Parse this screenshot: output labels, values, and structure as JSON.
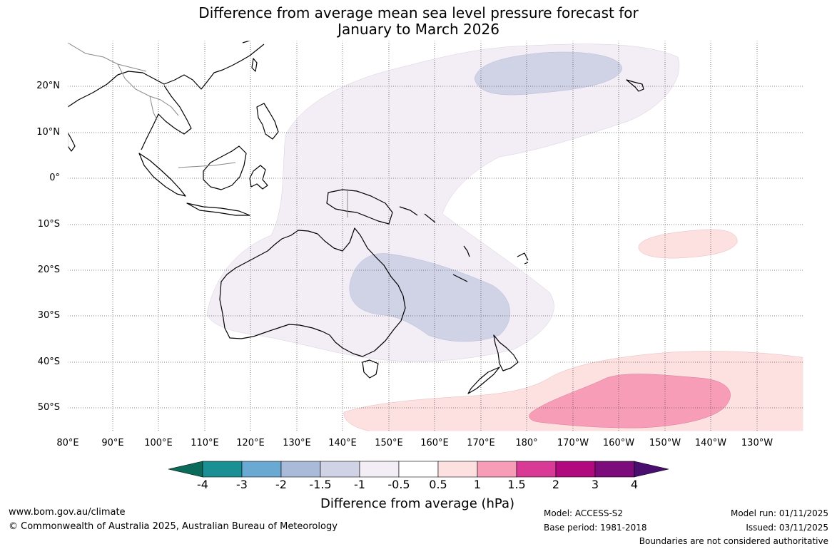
{
  "title": {
    "line1": "Difference from average mean sea level pressure forecast for",
    "line2": "January to March 2026"
  },
  "map": {
    "lat_labels": [
      "20°N",
      "10°N",
      "0°",
      "10°S",
      "20°S",
      "30°S",
      "40°S",
      "50°S"
    ],
    "lon_labels": [
      "80°E",
      "90°E",
      "100°E",
      "110°E",
      "120°E",
      "130°E",
      "140°E",
      "150°E",
      "160°E",
      "170°E",
      "180°",
      "170°W",
      "160°W",
      "150°W",
      "140°W",
      "130°W"
    ]
  },
  "colorbar": {
    "colors": [
      "#0b6b5a",
      "#1a9094",
      "#6aaad2",
      "#a9bbd9",
      "#d0d2e6",
      "#f3edf5",
      "#ffffff",
      "#fde0e0",
      "#f79db8",
      "#d93a96",
      "#b00a7e",
      "#7c0b7c",
      "#4a0f6e"
    ],
    "ticks": [
      "-4",
      "-3",
      "-2",
      "-1.5",
      "-1",
      "-0.5",
      "0.5",
      "1",
      "1.5",
      "2",
      "3",
      "4"
    ],
    "label": "Difference from average (hPa)"
  },
  "footer": {
    "website": "www.bom.gov.au/climate",
    "copyright": "© Commonwealth of Australia 2025, Australian Bureau of Meteorology",
    "model": "Model: ACCESS-S2",
    "base_period": "Base period: 1981-2018",
    "model_run": "Model run: 01/11/2025",
    "issued": "Issued: 03/11/2025",
    "disclaimer": "Boundaries are not considered authoritative"
  }
}
